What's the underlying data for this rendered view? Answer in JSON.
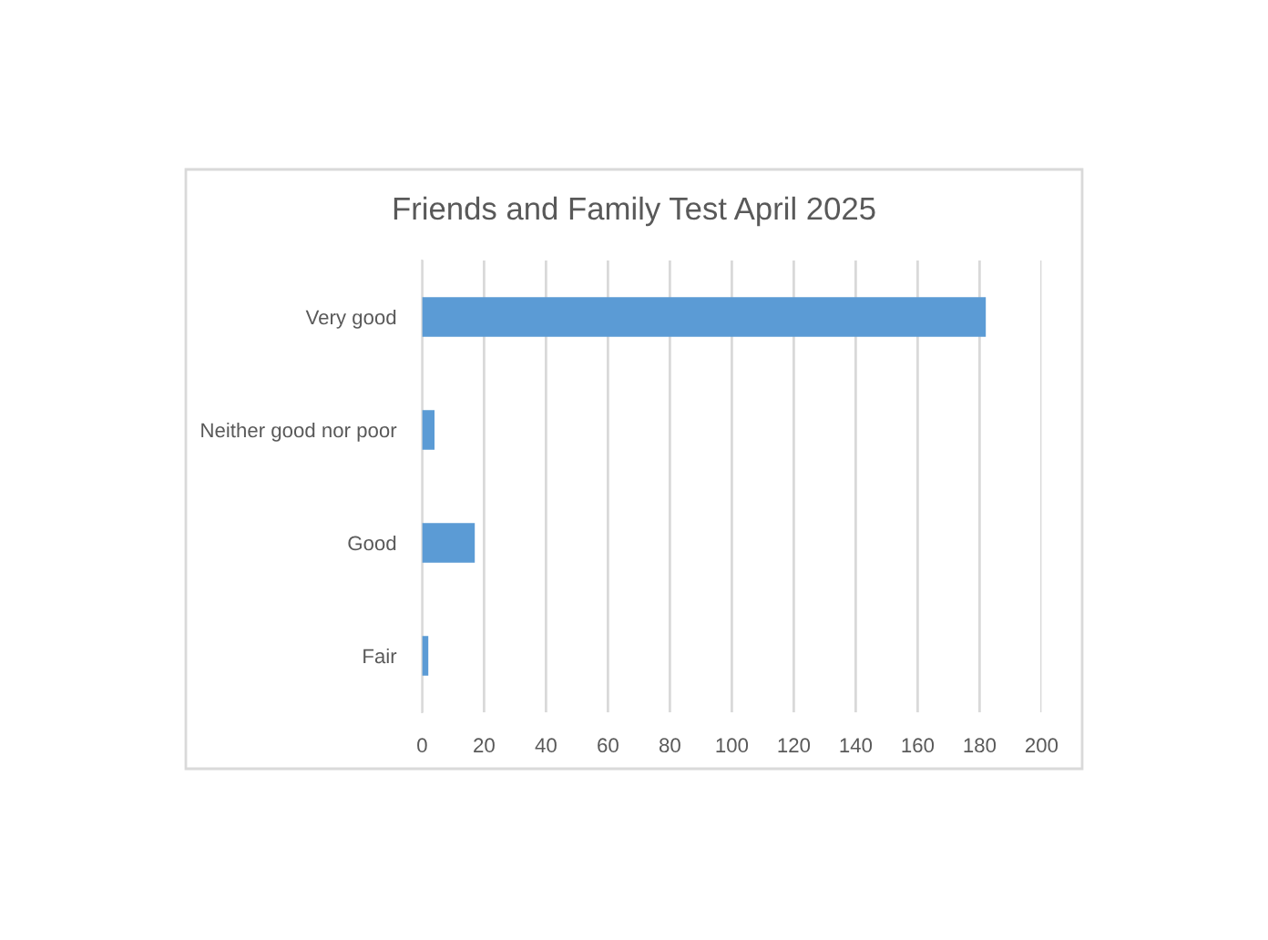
{
  "chart_data": {
    "type": "bar",
    "orientation": "horizontal",
    "title": "Friends and Family Test April 2025",
    "categories": [
      "Very good",
      "Neither good nor poor",
      "Good",
      "Fair"
    ],
    "values": [
      182,
      4,
      17,
      2
    ],
    "color": "#5b9bd5",
    "xlim": [
      0,
      200
    ],
    "xticks": [
      0,
      20,
      40,
      60,
      80,
      100,
      120,
      140,
      160,
      180,
      200
    ],
    "grid": "x",
    "legend": false
  }
}
